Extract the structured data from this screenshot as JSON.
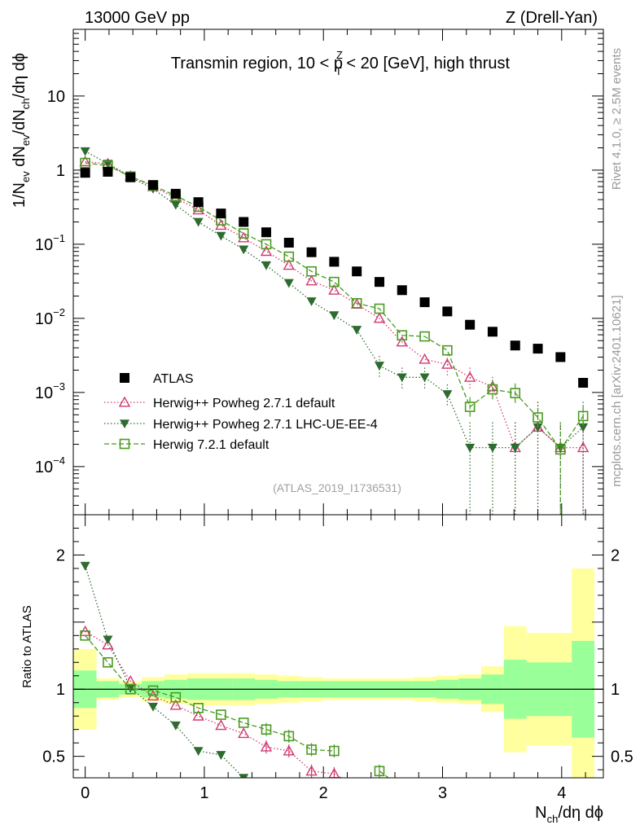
{
  "header": {
    "left": "13000 GeV pp",
    "right": "Z (Drell-Yan)"
  },
  "side": {
    "rivet": "Rivet 4.1.0, ≥ 2.5M events",
    "mcplots": "mcplots.cern.ch [arXiv:2401.10621]"
  },
  "chart_data": {
    "type": "scatter",
    "title_parts": [
      "Transmin region, 10 < p",
      "Z",
      "T",
      " < 20 [GeV], high thrust"
    ],
    "reference": "(ATLAS_2019_I1736531)",
    "xlabel_parts": [
      "N",
      "ch",
      "/dη dϕ"
    ],
    "ylabel_parts": [
      "1/N",
      "ev",
      " dN",
      "ev",
      "/dN",
      "ch",
      "/dη dϕ"
    ],
    "ratio_ylabel": "Ratio to ATLAS",
    "xlim": [
      -0.1,
      4.35
    ],
    "ylim_main_log10": [
      -4.65,
      1.9
    ],
    "ylim_ratio": [
      0.34,
      2.3
    ],
    "x_ticks": [
      0,
      1,
      2,
      3,
      4
    ],
    "x_tick_labels": [
      "0",
      "1",
      "2",
      "3",
      "4"
    ],
    "y_tick_labels": [
      {
        "value": 10,
        "base": "10",
        "exp": ""
      },
      {
        "value": 1,
        "base": "1",
        "exp": ""
      },
      {
        "value": 0.1,
        "base": "10",
        "exp": "−1"
      },
      {
        "value": 0.01,
        "base": "10",
        "exp": "−2"
      },
      {
        "value": 0.001,
        "base": "10",
        "exp": "−3"
      },
      {
        "value": 0.0001,
        "base": "10",
        "exp": "−4"
      }
    ],
    "ratio_ticks": [
      0.5,
      1,
      2
    ],
    "ratio_tick_labels": [
      "0.5",
      "1",
      "2"
    ],
    "x": [
      0,
      0.19,
      0.38,
      0.57,
      0.76,
      0.95,
      1.14,
      1.33,
      1.52,
      1.71,
      1.9,
      2.09,
      2.28,
      2.47,
      2.66,
      2.85,
      3.04,
      3.23,
      3.42,
      3.61,
      3.8,
      3.99,
      4.18
    ],
    "bin_edges": [
      -0.1,
      0.095,
      0.285,
      0.475,
      0.665,
      0.855,
      1.045,
      1.235,
      1.425,
      1.615,
      1.805,
      1.995,
      2.185,
      2.375,
      2.565,
      2.755,
      2.945,
      3.135,
      3.325,
      3.515,
      3.705,
      3.895,
      4.085,
      4.275
    ],
    "atlas": [
      0.92,
      0.95,
      0.8,
      0.63,
      0.48,
      0.37,
      0.26,
      0.2,
      0.145,
      0.105,
      0.078,
      0.058,
      0.043,
      0.031,
      0.024,
      0.0165,
      0.0124,
      0.0082,
      0.0066,
      0.0043,
      0.0039,
      0.003,
      0.00135
    ],
    "band_green_halfwidth": [
      0.14,
      0.06,
      0.04,
      0.06,
      0.07,
      0.08,
      0.08,
      0.08,
      0.07,
      0.06,
      0.06,
      0.06,
      0.06,
      0.06,
      0.06,
      0.06,
      0.07,
      0.08,
      0.11,
      0.22,
      0.2,
      0.2,
      0.36
    ],
    "band_yellow_halfwidth": [
      0.3,
      0.08,
      0.06,
      0.09,
      0.11,
      0.12,
      0.12,
      0.12,
      0.11,
      0.1,
      0.09,
      0.08,
      0.08,
      0.08,
      0.08,
      0.09,
      0.1,
      0.11,
      0.17,
      0.47,
      0.42,
      0.42,
      0.9
    ],
    "series": [
      {
        "name": "ATLAS",
        "marker": "square-filled",
        "color": "#000000",
        "dash": "none",
        "values": [
          0.92,
          0.95,
          0.8,
          0.63,
          0.48,
          0.37,
          0.26,
          0.2,
          0.145,
          0.105,
          0.078,
          0.058,
          0.043,
          0.031,
          0.024,
          0.0165,
          0.0124,
          0.0082,
          0.0066,
          0.0043,
          0.0039,
          0.003,
          0.00135
        ],
        "ratio": []
      },
      {
        "name": "Herwig++ Powheg 2.7.1 default",
        "marker": "triangle-up-open",
        "color": "#d03a72",
        "dash": "1.5,2.5",
        "values": [
          1.3,
          1.22,
          0.83,
          0.6,
          0.42,
          0.29,
          0.18,
          0.122,
          0.08,
          0.052,
          0.032,
          0.024,
          0.0155,
          0.01,
          0.0048,
          0.0028,
          0.0024,
          0.0016,
          0.0012,
          0.00018,
          0.00034,
          0.00018,
          0.00018
        ],
        "ratio": [
          1.43,
          1.33,
          1.06,
          0.95,
          0.88,
          0.8,
          0.73,
          0.67,
          0.57,
          0.54,
          0.39,
          0.37,
          null,
          null,
          null,
          null,
          null,
          null,
          null,
          null,
          null,
          null,
          null
        ]
      },
      {
        "name": "Herwig++ Powheg 2.7.1 LHC-UE-EE-4",
        "marker": "triangle-down-filled",
        "color": "#2e6b2e",
        "dash": "1.5,2.5",
        "values": [
          1.8,
          1.22,
          0.8,
          0.56,
          0.34,
          0.2,
          0.13,
          0.085,
          0.052,
          0.03,
          0.017,
          0.011,
          0.007,
          0.0023,
          0.0016,
          0.0016,
          0.00095,
          0.00018,
          0.00018,
          0.00018,
          0.00034,
          0.00018,
          0.00034
        ],
        "ratio": [
          1.92,
          1.37,
          1.01,
          0.87,
          0.73,
          0.54,
          0.51,
          0.34,
          null,
          null,
          null,
          null,
          null,
          null,
          null,
          null,
          null,
          null,
          null,
          null,
          null,
          null,
          null
        ]
      },
      {
        "name": "Herwig 7.2.1 default",
        "marker": "square-open",
        "color": "#4a9a1f",
        "dash": "6,3",
        "values": [
          1.25,
          1.15,
          0.82,
          0.62,
          0.45,
          0.32,
          0.21,
          0.14,
          0.1,
          0.068,
          0.043,
          0.031,
          0.016,
          0.0135,
          0.0059,
          0.0057,
          0.0037,
          0.00064,
          0.0011,
          0.00098,
          0.00046,
          0.00017,
          0.00048
        ],
        "ratio": [
          1.4,
          1.2,
          1.0,
          0.99,
          0.94,
          0.86,
          0.81,
          0.75,
          0.7,
          0.65,
          0.55,
          0.54,
          null,
          0.39,
          null,
          null,
          null,
          null,
          null,
          null,
          null,
          null,
          null
        ]
      }
    ]
  }
}
